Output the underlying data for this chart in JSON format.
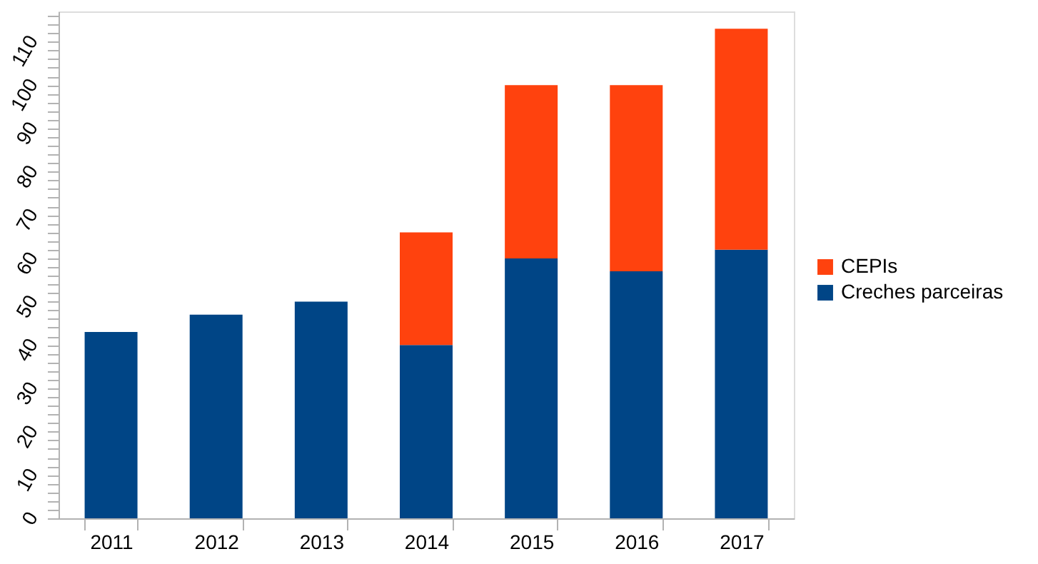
{
  "chart_data": {
    "type": "bar",
    "stacked": true,
    "categories": [
      "2011",
      "2012",
      "2013",
      "2014",
      "2015",
      "2016",
      "2017"
    ],
    "series": [
      {
        "name": "Creches parceiras",
        "color": "#004586",
        "values": [
          43,
          47,
          50,
          40,
          60,
          57,
          62
        ]
      },
      {
        "name": "CEPIs",
        "color": "#ff420e",
        "values": [
          null,
          null,
          null,
          26,
          40,
          43,
          51
        ]
      }
    ],
    "ylim": [
      0,
      117
    ],
    "yticks": [
      0,
      {
        "value": 2,
        "label": null
      },
      {
        "value": 4,
        "label": null
      },
      {
        "value": 6,
        "label": null
      },
      {
        "value": 8,
        "label": null
      },
      10,
      {
        "value": 12,
        "label": null
      },
      {
        "value": 14,
        "label": null
      },
      {
        "value": 16,
        "label": null
      },
      {
        "value": 18,
        "label": null
      },
      20,
      {
        "value": 22,
        "label": null
      },
      {
        "value": 24,
        "label": null
      },
      {
        "value": 26,
        "label": null
      },
      {
        "value": 28,
        "label": null
      },
      30,
      {
        "value": 32,
        "label": null
      },
      {
        "value": 34,
        "label": null
      },
      {
        "value": 36,
        "label": null
      },
      {
        "value": 38,
        "label": null
      },
      40,
      {
        "value": 42,
        "label": null
      },
      {
        "value": 44,
        "label": null
      },
      {
        "value": 46,
        "label": null
      },
      {
        "value": 48,
        "label": null
      },
      50,
      {
        "value": 52,
        "label": null
      },
      {
        "value": 54,
        "label": null
      },
      {
        "value": 56,
        "label": null
      },
      {
        "value": 58,
        "label": null
      },
      60,
      {
        "value": 62,
        "label": null
      },
      {
        "value": 64,
        "label": null
      },
      {
        "value": 66,
        "label": null
      },
      {
        "value": 68,
        "label": null
      },
      70,
      {
        "value": 72,
        "label": null
      },
      {
        "value": 74,
        "label": null
      },
      {
        "value": 76,
        "label": null
      },
      {
        "value": 78,
        "label": null
      },
      80,
      {
        "value": 82,
        "label": null
      },
      {
        "value": 84,
        "label": null
      },
      {
        "value": 86,
        "label": null
      },
      {
        "value": 88,
        "label": null
      },
      90,
      {
        "value": 92,
        "label": null
      },
      {
        "value": 94,
        "label": null
      },
      {
        "value": 96,
        "label": null
      },
      {
        "value": 98,
        "label": null
      },
      100,
      {
        "value": 102,
        "label": null
      },
      {
        "value": 104,
        "label": null
      },
      {
        "value": 106,
        "label": null
      },
      {
        "value": 108,
        "label": null
      },
      110,
      {
        "value": 112,
        "label": null
      },
      {
        "value": 114,
        "label": null
      },
      {
        "value": 116,
        "label": null
      }
    ],
    "grid": false,
    "legend": "right"
  }
}
